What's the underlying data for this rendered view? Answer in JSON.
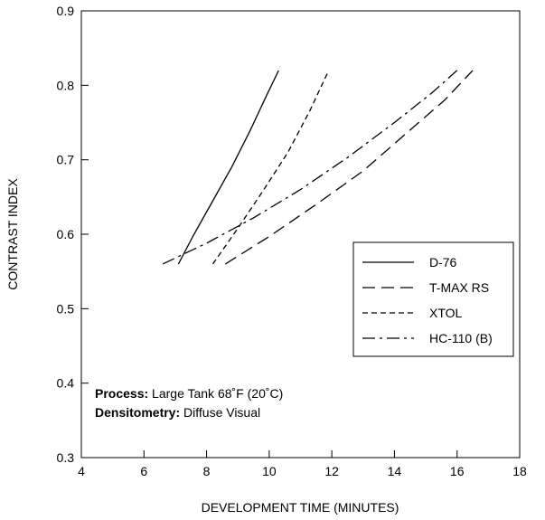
{
  "chart_data": {
    "type": "line",
    "xlabel": "DEVELOPMENT TIME (MINUTES)",
    "ylabel": "CONTRAST INDEX",
    "xlim": [
      4,
      18
    ],
    "ylim": [
      0.3,
      0.9
    ],
    "x_ticks": [
      "4",
      "6",
      "8",
      "10",
      "12",
      "14",
      "16",
      "18"
    ],
    "y_ticks": [
      "0.3",
      "0.4",
      "0.5",
      "0.6",
      "0.7",
      "0.8",
      "0.9"
    ],
    "grid": false,
    "legend_position": "right",
    "series": [
      {
        "name": "D-76",
        "dash": "solid",
        "x": [
          7.1,
          7.6,
          8.2,
          8.8,
          9.4,
          9.9,
          10.3
        ],
        "y": [
          0.56,
          0.6,
          0.645,
          0.69,
          0.74,
          0.785,
          0.82
        ]
      },
      {
        "name": "T-MAX RS",
        "dash": "long-dash",
        "x": [
          8.6,
          10.0,
          11.5,
          13.0,
          14.5,
          15.6,
          16.5
        ],
        "y": [
          0.56,
          0.597,
          0.64,
          0.685,
          0.74,
          0.78,
          0.82
        ]
      },
      {
        "name": "XTOL",
        "dash": "short-dash",
        "x": [
          8.2,
          9.0,
          9.8,
          10.6,
          11.3,
          11.9
        ],
        "y": [
          0.56,
          0.608,
          0.658,
          0.71,
          0.766,
          0.82
        ]
      },
      {
        "name": "HC-110 (B)",
        "dash": "dash-dot",
        "x": [
          6.6,
          8.0,
          9.5,
          11.0,
          12.5,
          14.0,
          15.2,
          16.0
        ],
        "y": [
          0.56,
          0.588,
          0.622,
          0.66,
          0.703,
          0.75,
          0.79,
          0.82
        ]
      }
    ],
    "annotations": [
      {
        "label": "Process:",
        "text": " Large Tank 68˚F (20˚C)"
      },
      {
        "label": "Densitometry:",
        "text": " Diffuse Visual"
      }
    ]
  }
}
